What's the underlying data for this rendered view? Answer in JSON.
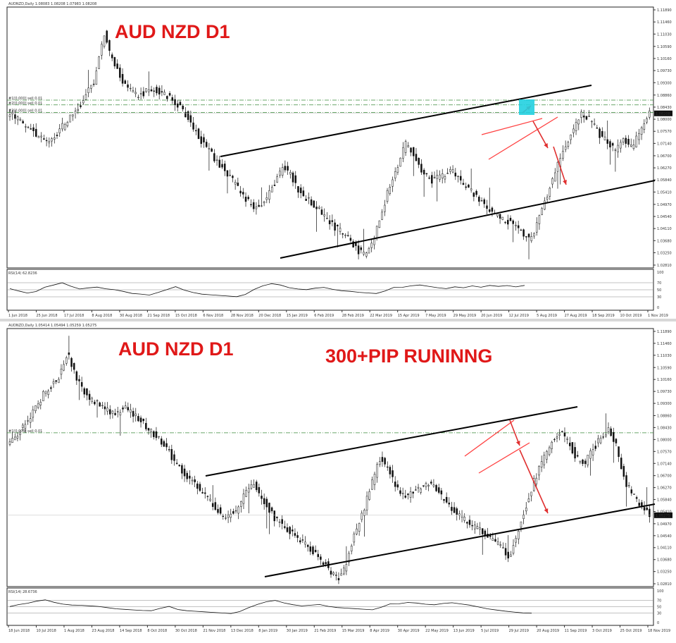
{
  "panels": [
    {
      "symbol_header": "AUDNZD,Daily  1.08083 1.08208 1.07983 1.08208",
      "title": "AUD NZD D1",
      "subtitle": "",
      "rsi_label": "RSI(14) 62.8236",
      "price_ticks": [
        "1.11890",
        "1.11460",
        "1.11030",
        "1.10590",
        "1.10160",
        "1.09730",
        "1.09300",
        "1.08860",
        "1.08430",
        "1.08000",
        "1.07570",
        "1.07140",
        "1.06700",
        "1.06270",
        "1.05840",
        "1.05410",
        "1.04970",
        "1.04540",
        "1.04110",
        "1.03680",
        "1.03250",
        "1.02810"
      ],
      "current_price": "1.08208",
      "rsi_ticks": [
        "100",
        "70",
        "50",
        "30",
        "0"
      ],
      "date_ticks": [
        "1 Jun 2018",
        "25 Jun 2018",
        "17 Jul 2018",
        "8 Aug 2018",
        "30 Aug 2018",
        "21 Sep 2018",
        "15 Oct 2018",
        "6 Nov 2018",
        "28 Nov 2018",
        "20 Dec 2018",
        "15 Jan 2019",
        "6 Feb 2019",
        "28 Feb 2019",
        "22 Mar 2019",
        "15 Apr 2019",
        "7 May 2019",
        "29 May 2019",
        "20 Jun 2019",
        "12 Jul 2019",
        "5 Aug 2019",
        "27 Aug 2019",
        "18 Sep 2019",
        "10 Oct 2019",
        "1 Nov 2019"
      ],
      "level_labels": [
        "#1[0.000] sell 0.01",
        "#2[0.000] sell 0.01",
        "#3[0.000] sell 0.01"
      ]
    },
    {
      "symbol_header": "AUDNZD,Daily  1.05414 1.05494 1.05259 1.05275",
      "title": "AUD NZD D1",
      "subtitle": "300+PIP RUNINNG",
      "rsi_label": "RSI(14) 28.6736",
      "price_ticks": [
        "1.11890",
        "1.11460",
        "1.11030",
        "1.10590",
        "1.10160",
        "1.09730",
        "1.09300",
        "1.08860",
        "1.08430",
        "1.08000",
        "1.07570",
        "1.07140",
        "1.06700",
        "1.06270",
        "1.05840",
        "1.05410",
        "1.04970",
        "1.04540",
        "1.04110",
        "1.03680",
        "1.03250",
        "1.02810"
      ],
      "current_price": "1.05275",
      "rsi_ticks": [
        "100",
        "70",
        "50",
        "30",
        "0"
      ],
      "date_ticks": [
        "18 Jun 2018",
        "10 Jul 2018",
        "1 Aug 2018",
        "23 Aug 2018",
        "14 Sep 2018",
        "8 Oct 2018",
        "30 Oct 2018",
        "21 Nov 2018",
        "13 Dec 2018",
        "8 Jan 2019",
        "30 Jan 2019",
        "21 Feb 2019",
        "15 Mar 2019",
        "8 Apr 2019",
        "30 Apr 2019",
        "22 May 2019",
        "13 Jun 2019",
        "5 Jul 2019",
        "29 Jul 2019",
        "20 Aug 2019",
        "11 Sep 2019",
        "3 Oct 2019",
        "25 Oct 2019",
        "18 Nov 2019"
      ],
      "level_labels": [
        "#1[0.000] sell 0.01"
      ]
    }
  ],
  "chart_data": [
    {
      "type": "candlestick",
      "title": "AUD NZD D1",
      "ylim": [
        1.0281,
        1.1189
      ],
      "x_range": [
        "1 Jun 2018",
        "1 Nov 2019"
      ],
      "indicator": {
        "name": "RSI(14)",
        "last": 62.8236,
        "ylim": [
          0,
          100
        ],
        "levels": [
          30,
          50,
          70
        ]
      },
      "path_points": [
        [
          0,
          1.082
        ],
        [
          4,
          1.0775
        ],
        [
          8,
          1.072
        ],
        [
          11,
          1.0745
        ],
        [
          14,
          1.081
        ],
        [
          17,
          1.086
        ],
        [
          20,
          1.0945
        ],
        [
          22,
          1.111
        ],
        [
          24,
          1.101
        ],
        [
          27,
          1.092
        ],
        [
          30,
          1.088
        ],
        [
          33,
          1.091
        ],
        [
          36,
          1.089
        ],
        [
          39,
          1.086
        ],
        [
          42,
          1.08
        ],
        [
          45,
          1.072
        ],
        [
          48,
          1.066
        ],
        [
          51,
          1.061
        ],
        [
          54,
          1.054
        ],
        [
          57,
          1.049
        ],
        [
          60,
          1.051
        ],
        [
          62,
          1.057
        ],
        [
          64,
          1.063
        ],
        [
          66,
          1.06
        ],
        [
          68,
          1.054
        ],
        [
          70,
          1.051
        ],
        [
          73,
          1.047
        ],
        [
          76,
          1.042
        ],
        [
          79,
          1.038
        ],
        [
          81,
          1.034
        ],
        [
          83,
          1.032
        ],
        [
          85,
          1.036
        ],
        [
          87,
          1.046
        ],
        [
          89,
          1.056
        ],
        [
          91,
          1.064
        ],
        [
          93,
          1.072
        ],
        [
          95,
          1.066
        ],
        [
          97,
          1.061
        ],
        [
          99,
          1.058
        ],
        [
          102,
          1.06
        ],
        [
          104,
          1.062
        ],
        [
          106,
          1.057
        ],
        [
          109,
          1.053
        ],
        [
          112,
          1.048
        ],
        [
          115,
          1.045
        ],
        [
          118,
          1.043
        ],
        [
          120,
          1.04
        ],
        [
          122,
          1.037
        ],
        [
          124,
          1.044
        ],
        [
          126,
          1.053
        ],
        [
          128,
          1.062
        ],
        [
          130,
          1.07
        ],
        [
          132,
          1.076
        ],
        [
          134,
          1.082
        ],
        [
          136,
          1.08
        ],
        [
          138,
          1.075
        ],
        [
          140,
          1.072
        ],
        [
          142,
          1.069
        ],
        [
          144,
          1.073
        ],
        [
          146,
          1.07
        ],
        [
          148,
          1.076
        ],
        [
          150,
          1.082
        ]
      ],
      "rsi_series": [
        55,
        48,
        42,
        46,
        58,
        64,
        70,
        60,
        52,
        55,
        57,
        52,
        49,
        44,
        38,
        36,
        33,
        40,
        48,
        56,
        52,
        45,
        40,
        38,
        36,
        34,
        32,
        38,
        52,
        62,
        68,
        64,
        56,
        52,
        50,
        54,
        56,
        50,
        46,
        44,
        41,
        39,
        37,
        44,
        54,
        60,
        64,
        66,
        62,
        58,
        55,
        60,
        57,
        62,
        58,
        63,
        60,
        62,
        58,
        62
      ]
    },
    {
      "type": "candlestick",
      "title": "AUD NZD D1",
      "ylim": [
        1.0281,
        1.1189
      ],
      "x_range": [
        "18 Jun 2018",
        "18 Nov 2019"
      ],
      "indicator": {
        "name": "RSI(14)",
        "last": 28.6736,
        "ylim": [
          0,
          100
        ],
        "levels": [
          30,
          50,
          70
        ]
      },
      "path_points": [
        [
          0,
          1.079
        ],
        [
          4,
          1.086
        ],
        [
          8,
          1.096
        ],
        [
          12,
          1.103
        ],
        [
          14,
          1.112
        ],
        [
          16,
          1.102
        ],
        [
          19,
          1.095
        ],
        [
          22,
          1.092
        ],
        [
          25,
          1.089
        ],
        [
          28,
          1.091
        ],
        [
          31,
          1.088
        ],
        [
          34,
          1.083
        ],
        [
          37,
          1.079
        ],
        [
          40,
          1.072
        ],
        [
          43,
          1.066
        ],
        [
          46,
          1.062
        ],
        [
          49,
          1.057
        ],
        [
          52,
          1.052
        ],
        [
          55,
          1.054
        ],
        [
          57,
          1.061
        ],
        [
          59,
          1.064
        ],
        [
          61,
          1.059
        ],
        [
          64,
          1.052
        ],
        [
          67,
          1.048
        ],
        [
          70,
          1.044
        ],
        [
          73,
          1.04
        ],
        [
          76,
          1.036
        ],
        [
          78,
          1.032
        ],
        [
          80,
          1.03
        ],
        [
          82,
          1.038
        ],
        [
          84,
          1.048
        ],
        [
          86,
          1.056
        ],
        [
          88,
          1.066
        ],
        [
          90,
          1.074
        ],
        [
          92,
          1.068
        ],
        [
          94,
          1.062
        ],
        [
          96,
          1.06
        ],
        [
          99,
          1.062
        ],
        [
          102,
          1.064
        ],
        [
          105,
          1.059
        ],
        [
          108,
          1.054
        ],
        [
          111,
          1.05
        ],
        [
          114,
          1.047
        ],
        [
          117,
          1.044
        ],
        [
          119,
          1.041
        ],
        [
          121,
          1.038
        ],
        [
          123,
          1.047
        ],
        [
          125,
          1.056
        ],
        [
          127,
          1.065
        ],
        [
          129,
          1.072
        ],
        [
          131,
          1.078
        ],
        [
          133,
          1.083
        ],
        [
          135,
          1.08
        ],
        [
          137,
          1.074
        ],
        [
          139,
          1.071
        ],
        [
          141,
          1.076
        ],
        [
          143,
          1.08
        ],
        [
          145,
          1.084
        ],
        [
          147,
          1.078
        ],
        [
          149,
          1.065
        ],
        [
          151,
          1.06
        ],
        [
          153,
          1.056
        ],
        [
          155,
          1.0528
        ]
      ],
      "rsi_series": [
        52,
        58,
        62,
        68,
        72,
        64,
        58,
        55,
        54,
        52,
        50,
        46,
        42,
        40,
        38,
        36,
        35,
        42,
        48,
        44,
        40,
        38,
        36,
        34,
        32,
        30,
        36,
        48,
        58,
        66,
        70,
        62,
        56,
        52,
        54,
        56,
        50,
        46,
        44,
        42,
        40,
        38,
        46,
        56,
        62,
        66,
        64,
        60,
        58,
        62,
        64,
        60,
        56,
        50,
        44,
        40,
        36,
        33,
        30,
        29
      ]
    }
  ]
}
